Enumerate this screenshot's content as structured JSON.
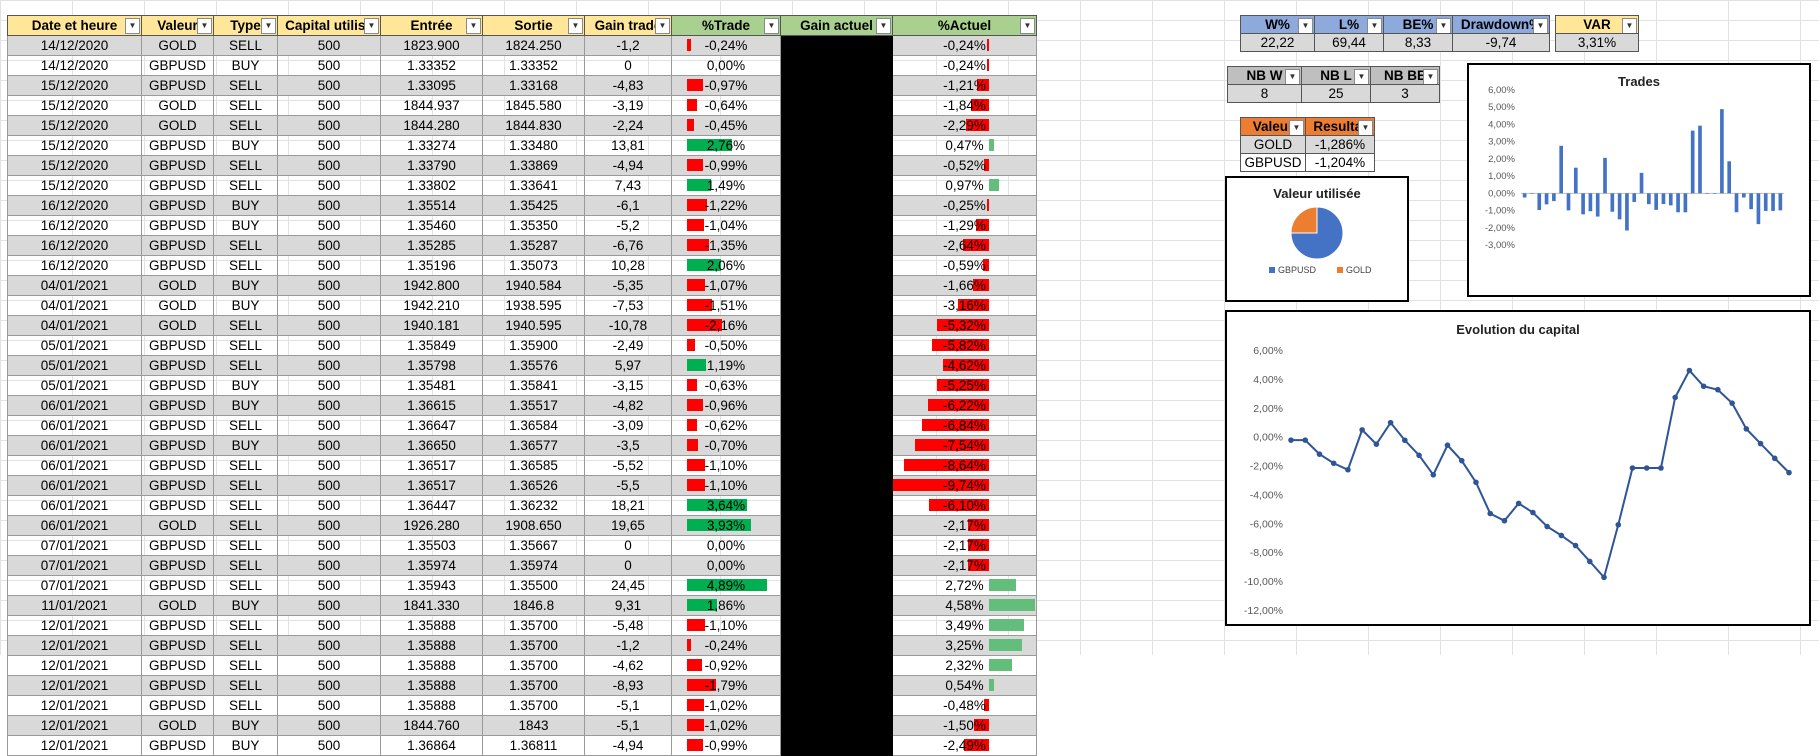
{
  "table": {
    "headers": [
      "Date et heure",
      "Valeur",
      "Type",
      "Capital utilisé",
      "Entrée",
      "Sortie",
      "Gain trade",
      "%Trade",
      "Gain actuel",
      "%Actuel"
    ],
    "rows": [
      [
        "14/12/2020",
        "GOLD",
        "SELL",
        "500",
        "1823.900",
        "1824.250",
        "-1,2",
        "-0,24%",
        "",
        "-0,24%"
      ],
      [
        "14/12/2020",
        "GBPUSD",
        "BUY",
        "500",
        "1.33352",
        "1.33352",
        "0",
        "0,00%",
        "",
        "-0,24%"
      ],
      [
        "15/12/2020",
        "GBPUSD",
        "SELL",
        "500",
        "1.33095",
        "1.33168",
        "-4,83",
        "-0,97%",
        "",
        "-1,21%"
      ],
      [
        "15/12/2020",
        "GOLD",
        "SELL",
        "500",
        "1844.937",
        "1845.580",
        "-3,19",
        "-0,64%",
        "",
        "-1,84%"
      ],
      [
        "15/12/2020",
        "GOLD",
        "SELL",
        "500",
        "1844.280",
        "1844.830",
        "-2,24",
        "-0,45%",
        "",
        "-2,29%"
      ],
      [
        "15/12/2020",
        "GBPUSD",
        "BUY",
        "500",
        "1.33274",
        "1.33480",
        "13,81",
        "2,76%",
        "",
        "0,47%"
      ],
      [
        "15/12/2020",
        "GBPUSD",
        "SELL",
        "500",
        "1.33790",
        "1.33869",
        "-4,94",
        "-0,99%",
        "",
        "-0,52%"
      ],
      [
        "15/12/2020",
        "GBPUSD",
        "SELL",
        "500",
        "1.33802",
        "1.33641",
        "7,43",
        "1,49%",
        "",
        "0,97%"
      ],
      [
        "16/12/2020",
        "GBPUSD",
        "BUY",
        "500",
        "1.35514",
        "1.35425",
        "-6,1",
        "-1,22%",
        "",
        "-0,25%"
      ],
      [
        "16/12/2020",
        "GBPUSD",
        "BUY",
        "500",
        "1.35460",
        "1.35350",
        "-5,2",
        "-1,04%",
        "",
        "-1,29%"
      ],
      [
        "16/12/2020",
        "GBPUSD",
        "SELL",
        "500",
        "1.35285",
        "1.35287",
        "-6,76",
        "-1,35%",
        "",
        "-2,64%"
      ],
      [
        "16/12/2020",
        "GBPUSD",
        "SELL",
        "500",
        "1.35196",
        "1.35073",
        "10,28",
        "2,06%",
        "",
        "-0,59%"
      ],
      [
        "04/01/2021",
        "GOLD",
        "BUY",
        "500",
        "1942.800",
        "1940.584",
        "-5,35",
        "-1,07%",
        "",
        "-1,66%"
      ],
      [
        "04/01/2021",
        "GOLD",
        "BUY",
        "500",
        "1942.210",
        "1938.595",
        "-7,53",
        "-1,51%",
        "",
        "-3,16%"
      ],
      [
        "04/01/2021",
        "GOLD",
        "SELL",
        "500",
        "1940.181",
        "1940.595",
        "-10,78",
        "-2,16%",
        "",
        "-5,32%"
      ],
      [
        "05/01/2021",
        "GBPUSD",
        "SELL",
        "500",
        "1.35849",
        "1.35900",
        "-2,49",
        "-0,50%",
        "",
        "-5,82%"
      ],
      [
        "05/01/2021",
        "GBPUSD",
        "SELL",
        "500",
        "1.35798",
        "1.35576",
        "5,97",
        "1,19%",
        "",
        "-4,62%"
      ],
      [
        "05/01/2021",
        "GBPUSD",
        "BUY",
        "500",
        "1.35481",
        "1.35841",
        "-3,15",
        "-0,63%",
        "",
        "-5,25%"
      ],
      [
        "06/01/2021",
        "GBPUSD",
        "BUY",
        "500",
        "1.36615",
        "1.35517",
        "-4,82",
        "-0,96%",
        "",
        "-6,22%"
      ],
      [
        "06/01/2021",
        "GBPUSD",
        "SELL",
        "500",
        "1.36647",
        "1.36584",
        "-3,09",
        "-0,62%",
        "",
        "-6,84%"
      ],
      [
        "06/01/2021",
        "GBPUSD",
        "BUY",
        "500",
        "1.36650",
        "1.36577",
        "-3,5",
        "-0,70%",
        "",
        "-7,54%"
      ],
      [
        "06/01/2021",
        "GBPUSD",
        "SELL",
        "500",
        "1.36517",
        "1.36585",
        "-5,52",
        "-1,10%",
        "",
        "-8,64%"
      ],
      [
        "06/01/2021",
        "GBPUSD",
        "SELL",
        "500",
        "1.36517",
        "1.36526",
        "-5,5",
        "-1,10%",
        "",
        "-9,74%"
      ],
      [
        "06/01/2021",
        "GBPUSD",
        "SELL",
        "500",
        "1.36447",
        "1.36232",
        "18,21",
        "3,64%",
        "",
        "-6,10%"
      ],
      [
        "06/01/2021",
        "GOLD",
        "SELL",
        "500",
        "1926.280",
        "1908.650",
        "19,65",
        "3,93%",
        "",
        "-2,17%"
      ],
      [
        "07/01/2021",
        "GBPUSD",
        "SELL",
        "500",
        "1.35503",
        "1.35667",
        "0",
        "0,00%",
        "",
        "-2,17%"
      ],
      [
        "07/01/2021",
        "GBPUSD",
        "SELL",
        "500",
        "1.35974",
        "1.35974",
        "0",
        "0,00%",
        "",
        "-2,17%"
      ],
      [
        "07/01/2021",
        "GBPUSD",
        "SELL",
        "500",
        "1.35943",
        "1.35500",
        "24,45",
        "4,89%",
        "",
        "2,72%"
      ],
      [
        "11/01/2021",
        "GOLD",
        "BUY",
        "500",
        "1841.330",
        "1846.8",
        "9,31",
        "1,86%",
        "",
        "4,58%"
      ],
      [
        "12/01/2021",
        "GBPUSD",
        "SELL",
        "500",
        "1.35888",
        "1.35700",
        "-5,48",
        "-1,10%",
        "",
        "3,49%"
      ],
      [
        "12/01/2021",
        "GBPUSD",
        "SELL",
        "500",
        "1.35888",
        "1.35700",
        "-1,2",
        "-0,24%",
        "",
        "3,25%"
      ],
      [
        "12/01/2021",
        "GBPUSD",
        "SELL",
        "500",
        "1.35888",
        "1.35700",
        "-4,62",
        "-0,92%",
        "",
        "2,32%"
      ],
      [
        "12/01/2021",
        "GBPUSD",
        "SELL",
        "500",
        "1.35888",
        "1.35700",
        "-8,93",
        "-1,79%",
        "",
        "0,54%"
      ],
      [
        "12/01/2021",
        "GBPUSD",
        "SELL",
        "500",
        "1.35888",
        "1.35700",
        "-5,1",
        "-1,02%",
        "",
        "-0,48%"
      ],
      [
        "12/01/2021",
        "GOLD",
        "BUY",
        "500",
        "1844.760",
        "1843",
        "-5,1",
        "-1,02%",
        "",
        "-1,50%"
      ],
      [
        "12/01/2021",
        "GBPUSD",
        "BUY",
        "500",
        "1.36864",
        "1.36811",
        "-4,94",
        "-0,99%",
        "",
        "-2,49%"
      ]
    ]
  },
  "stats": {
    "w_label": "W%",
    "w_value": "22,22",
    "l_label": "L%",
    "l_value": "69,44",
    "be_label": "BE%",
    "be_value": "8,33",
    "dd_label": "Drawdown%",
    "dd_value": "-9,74",
    "var_label": "VAR",
    "var_value": "3,31%",
    "nbw_label": "NB W",
    "nbw_value": "8",
    "nbl_label": "NB L",
    "nbl_value": "25",
    "nbbe_label": "NB BE",
    "nbbe_value": "3",
    "valeur_label": "Valeur",
    "resultat_label": "Resultat",
    "gold_label": "GOLD",
    "gold_value": "-1,286%",
    "gbp_label": "GBPUSD",
    "gbp_value": "-1,204%"
  },
  "colors": {
    "blue": "#4472c4",
    "orange": "#ed7d31",
    "red": "#ff0000",
    "green": "#00b050",
    "lightgreen": "#63be7b"
  },
  "chart_data": [
    {
      "type": "pie",
      "title": "Valeur utilisée",
      "categories": [
        "GBPUSD",
        "GOLD"
      ],
      "values": [
        27,
        9
      ],
      "legend": "bottom"
    },
    {
      "type": "bar",
      "title": "Trades",
      "values": [
        -0.24,
        0.0,
        -0.97,
        -0.64,
        -0.45,
        2.76,
        -0.99,
        1.49,
        -1.22,
        -1.04,
        -1.35,
        2.06,
        -1.07,
        -1.51,
        -2.16,
        -0.5,
        1.19,
        -0.63,
        -0.96,
        -0.62,
        -0.7,
        -1.1,
        -1.1,
        3.64,
        3.93,
        0.0,
        0.0,
        4.89,
        1.86,
        -1.1,
        -0.24,
        -0.92,
        -1.79,
        -1.02,
        -1.02,
        -0.99
      ],
      "ylim": [
        -3,
        6
      ],
      "yticks": [
        "6,00%",
        "5,00%",
        "4,00%",
        "3,00%",
        "2,00%",
        "1,00%",
        "0,00%",
        "-1,00%",
        "-2,00%",
        "-3,00%"
      ]
    },
    {
      "type": "line",
      "title": "Evolution du capital",
      "values": [
        -0.24,
        -0.24,
        -1.21,
        -1.84,
        -2.29,
        0.47,
        -0.52,
        0.97,
        -0.25,
        -1.29,
        -2.64,
        -0.59,
        -1.66,
        -3.16,
        -5.32,
        -5.82,
        -4.62,
        -5.25,
        -6.22,
        -6.84,
        -7.54,
        -8.64,
        -9.74,
        -6.1,
        -2.17,
        -2.17,
        -2.17,
        2.72,
        4.58,
        3.49,
        3.25,
        2.32,
        0.54,
        -0.48,
        -1.5,
        -2.49
      ],
      "ylim": [
        -12,
        6
      ],
      "yticks": [
        "6,00%",
        "4,00%",
        "2,00%",
        "0,00%",
        "-2,00%",
        "-4,00%",
        "-6,00%",
        "-8,00%",
        "-10,00%",
        "-12,00%"
      ]
    }
  ]
}
